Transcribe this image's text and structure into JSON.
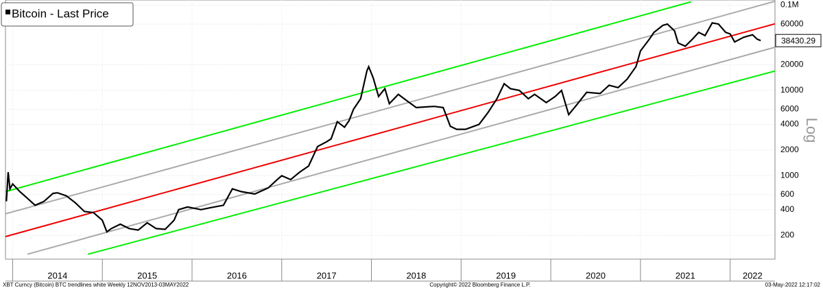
{
  "chart_data": {
    "type": "line",
    "legend_title": "Bitcoin - Last Price",
    "log_scale": true,
    "grid": true,
    "y_axis_label": "Log",
    "xlim": [
      2013.92,
      2022.5
    ],
    "ylim": [
      105,
      115000
    ],
    "yticks": [
      {
        "value": 100000,
        "label": "0.1M"
      },
      60000,
      20000,
      10000,
      6000,
      4000,
      2000,
      1000,
      600,
      400,
      200
    ],
    "xticks": [
      2014,
      2015,
      2016,
      2017,
      2018,
      2019,
      2020,
      2021,
      2022
    ],
    "xtick_labels": [
      {
        "value": 2014.5,
        "label": "2014"
      },
      {
        "value": 2015.5,
        "label": "2015"
      },
      {
        "value": 2016.5,
        "label": "2016"
      },
      {
        "value": 2017.5,
        "label": "2017"
      },
      {
        "value": 2018.5,
        "label": "2018"
      },
      {
        "value": 2019.5,
        "label": "2019"
      },
      {
        "value": 2020.5,
        "label": "2020"
      },
      {
        "value": 2021.5,
        "label": "2021"
      },
      {
        "value": 2022.25,
        "label": "2022"
      }
    ],
    "series": [
      {
        "name": "Bitcoin - Last Price",
        "color": "#000000",
        "x": [
          2013.93,
          2013.95,
          2013.97,
          2014.0,
          2014.08,
          2014.15,
          2014.25,
          2014.35,
          2014.45,
          2014.5,
          2014.6,
          2014.7,
          2014.8,
          2014.9,
          2015.0,
          2015.05,
          2015.1,
          2015.2,
          2015.3,
          2015.4,
          2015.5,
          2015.6,
          2015.7,
          2015.8,
          2015.85,
          2015.95,
          2016.1,
          2016.2,
          2016.35,
          2016.45,
          2016.55,
          2016.7,
          2016.85,
          2016.95,
          2017.0,
          2017.1,
          2017.2,
          2017.3,
          2017.4,
          2017.5,
          2017.55,
          2017.62,
          2017.7,
          2017.75,
          2017.8,
          2017.88,
          2017.95,
          2017.97,
          2018.02,
          2018.08,
          2018.15,
          2018.2,
          2018.3,
          2018.4,
          2018.5,
          2018.6,
          2018.7,
          2018.8,
          2018.88,
          2018.95,
          2019.05,
          2019.2,
          2019.3,
          2019.4,
          2019.48,
          2019.55,
          2019.65,
          2019.75,
          2019.82,
          2019.95,
          2020.05,
          2020.12,
          2020.2,
          2020.3,
          2020.4,
          2020.55,
          2020.65,
          2020.75,
          2020.85,
          2020.95,
          2021.0,
          2021.1,
          2021.15,
          2021.25,
          2021.3,
          2021.38,
          2021.42,
          2021.5,
          2021.58,
          2021.65,
          2021.72,
          2021.8,
          2021.87,
          2021.95,
          2022.0,
          2022.05,
          2022.15,
          2022.25,
          2022.3,
          2022.34
        ],
        "values": [
          500,
          1100,
          700,
          800,
          650,
          560,
          450,
          500,
          620,
          630,
          580,
          480,
          380,
          370,
          300,
          220,
          240,
          270,
          240,
          230,
          280,
          240,
          235,
          300,
          400,
          430,
          400,
          420,
          450,
          700,
          650,
          610,
          720,
          900,
          1000,
          900,
          1100,
          1300,
          2200,
          2500,
          2700,
          4300,
          3700,
          4400,
          6000,
          8000,
          17000,
          19000,
          14000,
          8500,
          10500,
          7000,
          9000,
          7500,
          6300,
          6400,
          6500,
          6300,
          3800,
          3500,
          3500,
          4000,
          5500,
          8000,
          12000,
          10500,
          10000,
          8000,
          9000,
          7200,
          8500,
          10000,
          5200,
          7000,
          9500,
          9200,
          11500,
          10800,
          13500,
          19000,
          29000,
          40000,
          48000,
          58000,
          60000,
          50000,
          36000,
          33000,
          40000,
          48000,
          44000,
          62000,
          60000,
          48000,
          46000,
          37000,
          42000,
          45000,
          40000,
          38430.29
        ]
      }
    ],
    "trendlines": [
      {
        "color": "#00ee00",
        "x": [
          2013.92,
          2021.565
        ],
        "values": [
          651,
          109500
        ]
      },
      {
        "color": "#aaaaaa",
        "x": [
          2013.92,
          2022.5
        ],
        "values": [
          357,
          111000
        ]
      },
      {
        "color": "#ee0000",
        "x": [
          2013.92,
          2022.5
        ],
        "values": [
          193,
          60500
        ]
      },
      {
        "color": "#aaaaaa",
        "x": [
          2014.165,
          2022.5
        ],
        "values": [
          120,
          32100
        ]
      },
      {
        "color": "#00ee00",
        "x": [
          2014.84,
          2022.5
        ],
        "values": [
          120,
          16900
        ]
      }
    ],
    "footer_left": "XBT Curncy (Bitcoin) BTC trendlines white  Weekly 12NOV2013-03MAY2022",
    "footer_center": "Copyright© 2022 Bloomberg Finance L.P.",
    "footer_right": "03-May-2022 12:17:02"
  }
}
